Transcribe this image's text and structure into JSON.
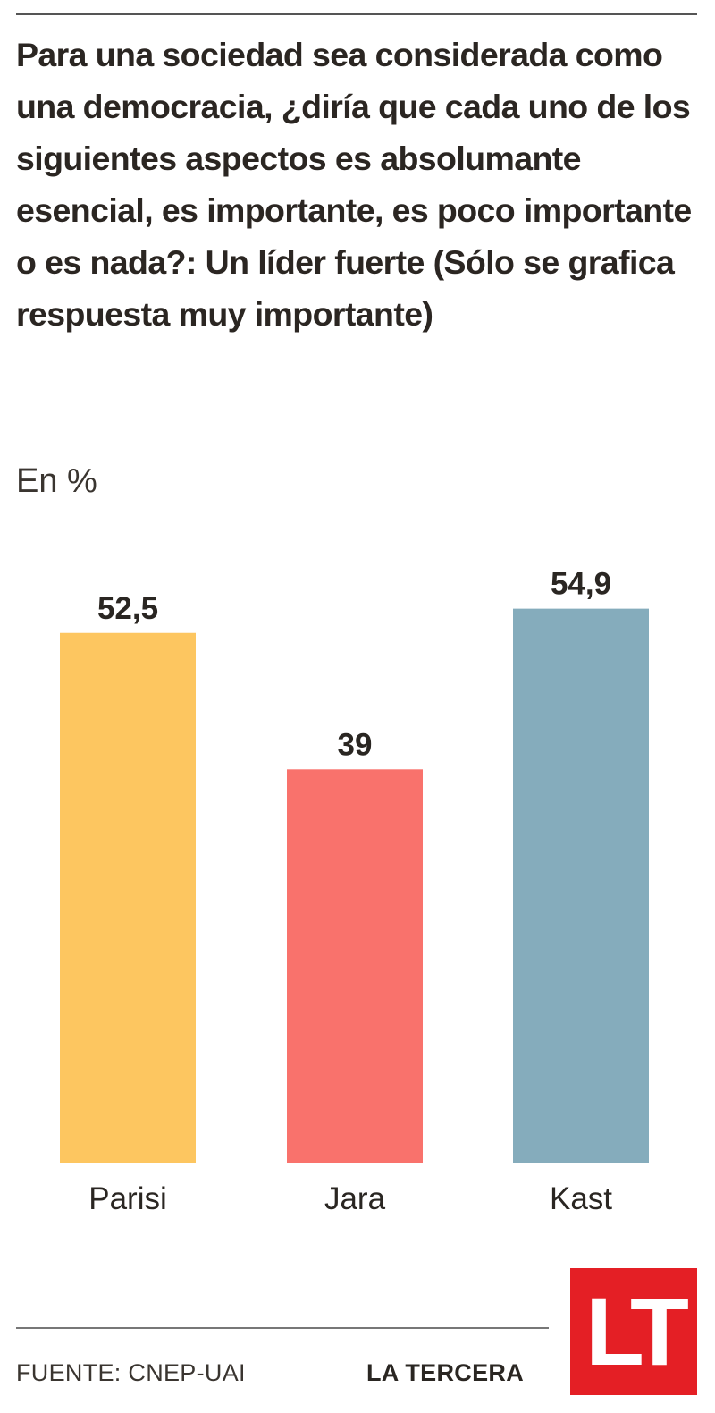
{
  "chart_data": {
    "type": "bar",
    "title": "Para una sociedad sea considerada como una democracia, ¿diría que cada uno de los siguientes aspectos es absolumante esencial, es importante, es poco importante o es nada?: Un líder fuerte (Sólo se grafica respuesta muy importante)",
    "subtitle": "En %",
    "categories": [
      "Parisi",
      "Jara",
      "Kast"
    ],
    "values": [
      52.5,
      39,
      54.9
    ],
    "value_labels": [
      "52,5",
      "39",
      "54,9"
    ],
    "colors": [
      "#fdc660",
      "#f9726c",
      "#85acbc"
    ],
    "ylim": [
      0,
      60
    ],
    "grid": false,
    "legend": "none",
    "xlabel": "",
    "ylabel": ""
  },
  "footer": {
    "source": "FUENTE: CNEP-UAI",
    "brand": "LA TERCERA",
    "logo_text": "LT",
    "logo_color": "#e41f25"
  }
}
